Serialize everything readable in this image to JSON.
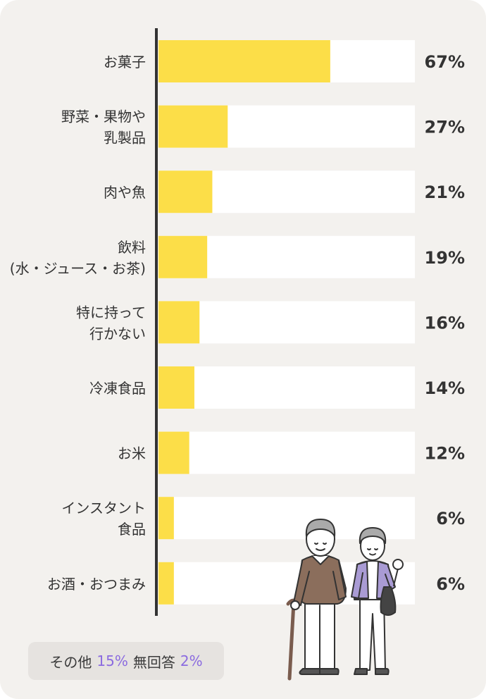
{
  "chart_data": {
    "type": "bar",
    "orientation": "horizontal",
    "categories": [
      [
        "お菓子"
      ],
      [
        "野菜・果物や",
        "乳製品"
      ],
      [
        "肉や魚"
      ],
      [
        "飲料",
        "(水・ジュース・お茶)"
      ],
      [
        "特に持って",
        "行かない"
      ],
      [
        "冷凍食品"
      ],
      [
        "お米"
      ],
      [
        "インスタント",
        "食品"
      ],
      [
        "お酒・おつまみ"
      ]
    ],
    "values": [
      67,
      27,
      21,
      19,
      16,
      14,
      12,
      6,
      6
    ],
    "value_labels": [
      "67%",
      "27%",
      "21%",
      "19%",
      "16%",
      "14%",
      "12%",
      "6%",
      "6%"
    ],
    "xlim": [
      0,
      100
    ],
    "grid": false,
    "colors": {
      "bar": "#fcde48",
      "track": "#ffffff",
      "axis": "#333333",
      "background": "#f3f1ee",
      "accent": "#8b6be0"
    }
  },
  "footer": {
    "other_label": "その他",
    "other_value": "15%",
    "no_answer_label": "無回答",
    "no_answer_value": "2%"
  },
  "illustration": {
    "icon": "elderly-couple-icon"
  }
}
